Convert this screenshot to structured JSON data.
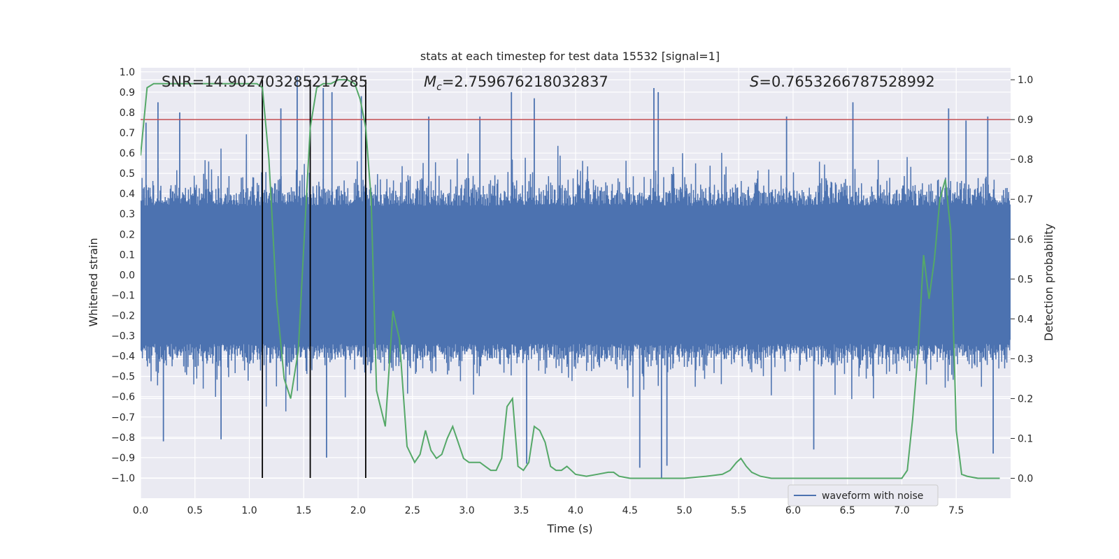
{
  "chart_data": {
    "type": "line",
    "title": "stats at each timestep for test data 15532 [signal=1]",
    "xlabel": "Time (s)",
    "ylabel": "Whitened strain",
    "y2label": "Detection probability",
    "xlim": [
      0.0,
      8.0
    ],
    "ylim": [
      -1.1,
      1.02
    ],
    "y2lim": [
      -0.05,
      1.03
    ],
    "xticks": [
      0.0,
      0.5,
      1.0,
      1.5,
      2.0,
      2.5,
      3.0,
      3.5,
      4.0,
      4.5,
      5.0,
      5.5,
      6.0,
      6.5,
      7.0,
      7.5
    ],
    "xtick_labels": [
      "0.0",
      "0.5",
      "1.0",
      "1.5",
      "2.0",
      "2.5",
      "3.0",
      "3.5",
      "4.0",
      "4.5",
      "5.0",
      "5.5",
      "6.0",
      "6.5",
      "7.0",
      "7.5"
    ],
    "yticks": [
      1.0,
      0.9,
      0.8,
      0.7,
      0.6,
      0.5,
      0.4,
      0.3,
      0.2,
      0.1,
      0.0,
      -0.1,
      -0.2,
      -0.3,
      -0.4,
      -0.5,
      -0.6,
      -0.7,
      -0.8,
      -0.9,
      -1.0
    ],
    "ytick_labels": [
      "1.0",
      "0.9",
      "0.8",
      "0.7",
      "0.6",
      "0.5",
      "0.4",
      "0.3",
      "0.2",
      "0.1",
      "0.0",
      "−0.1",
      "−0.2",
      "−0.3",
      "−0.4",
      "−0.5",
      "−0.6",
      "−0.7",
      "−0.8",
      "−0.9",
      "−1.0"
    ],
    "y2ticks": [
      1.0,
      0.9,
      0.8,
      0.7,
      0.6,
      0.5,
      0.4,
      0.3,
      0.2,
      0.1,
      0.0
    ],
    "y2tick_labels": [
      "1.0",
      "0.9",
      "0.8",
      "0.7",
      "0.6",
      "0.5",
      "0.4",
      "0.3",
      "0.2",
      "0.1",
      "0.0"
    ],
    "annotations": {
      "snr": "SNR=14.902703285217285",
      "mc_symbol": "M",
      "mc_sub": "c",
      "mc_value": "=2.759676218032837",
      "s_symbol": "S",
      "s_value": "=0.7653266787528992"
    },
    "threshold": 0.9,
    "vlines": [
      1.12,
      1.56,
      2.07
    ],
    "waveform": {
      "name": "waveform with noise",
      "typical_amplitude": 0.4,
      "peak_spikes": [
        {
          "t": 0.05,
          "v": 0.75
        },
        {
          "t": 0.16,
          "v": 0.85
        },
        {
          "t": 0.21,
          "v": -0.82
        },
        {
          "t": 0.36,
          "v": 0.8
        },
        {
          "t": 0.74,
          "v": -0.81
        },
        {
          "t": 1.29,
          "v": 0.82
        },
        {
          "t": 1.44,
          "v": 0.98
        },
        {
          "t": 1.68,
          "v": 0.92
        },
        {
          "t": 1.71,
          "v": -0.9
        },
        {
          "t": 1.76,
          "v": 0.9
        },
        {
          "t": 2.03,
          "v": 0.88
        },
        {
          "t": 2.65,
          "v": 0.78
        },
        {
          "t": 3.12,
          "v": 0.78
        },
        {
          "t": 3.41,
          "v": 0.9
        },
        {
          "t": 3.55,
          "v": -0.93
        },
        {
          "t": 3.62,
          "v": 0.87
        },
        {
          "t": 4.59,
          "v": -0.95
        },
        {
          "t": 4.72,
          "v": 0.92
        },
        {
          "t": 4.76,
          "v": 0.9
        },
        {
          "t": 4.79,
          "v": -1.0
        },
        {
          "t": 4.84,
          "v": -0.94
        },
        {
          "t": 5.94,
          "v": 0.78
        },
        {
          "t": 6.19,
          "v": -0.86
        },
        {
          "t": 6.55,
          "v": 0.85
        },
        {
          "t": 7.43,
          "v": 0.82
        },
        {
          "t": 7.59,
          "v": 0.76
        },
        {
          "t": 7.79,
          "v": 0.78
        },
        {
          "t": 7.84,
          "v": -0.88
        }
      ]
    },
    "probability": {
      "x": [
        0.0,
        0.06,
        0.12,
        0.25,
        0.5,
        0.75,
        0.95,
        1.07,
        1.12,
        1.18,
        1.25,
        1.32,
        1.38,
        1.45,
        1.5,
        1.56,
        1.62,
        1.68,
        1.75,
        1.82,
        1.9,
        1.97,
        2.02,
        2.07,
        2.12,
        2.17,
        2.25,
        2.32,
        2.38,
        2.45,
        2.52,
        2.57,
        2.62,
        2.67,
        2.72,
        2.77,
        2.82,
        2.87,
        2.92,
        2.97,
        3.02,
        3.07,
        3.12,
        3.17,
        3.22,
        3.27,
        3.32,
        3.37,
        3.42,
        3.47,
        3.52,
        3.57,
        3.62,
        3.67,
        3.72,
        3.77,
        3.82,
        3.87,
        3.92,
        4.0,
        4.1,
        4.2,
        4.3,
        4.35,
        4.4,
        4.5,
        4.6,
        4.8,
        5.0,
        5.2,
        5.35,
        5.42,
        5.48,
        5.52,
        5.57,
        5.62,
        5.7,
        5.8,
        6.0,
        6.2,
        6.4,
        6.6,
        6.8,
        7.0,
        7.05,
        7.1,
        7.15,
        7.2,
        7.25,
        7.3,
        7.35,
        7.4,
        7.45,
        7.5,
        7.55,
        7.6,
        7.7,
        7.8,
        7.9
      ],
      "y": [
        0.81,
        0.98,
        0.99,
        0.99,
        0.99,
        0.99,
        0.99,
        0.99,
        0.98,
        0.8,
        0.45,
        0.25,
        0.2,
        0.32,
        0.58,
        0.88,
        0.98,
        0.99,
        0.99,
        1.0,
        1.0,
        0.99,
        0.95,
        0.88,
        0.7,
        0.22,
        0.13,
        0.42,
        0.35,
        0.08,
        0.04,
        0.06,
        0.12,
        0.07,
        0.05,
        0.06,
        0.1,
        0.13,
        0.09,
        0.05,
        0.04,
        0.04,
        0.04,
        0.03,
        0.02,
        0.02,
        0.05,
        0.18,
        0.2,
        0.03,
        0.02,
        0.04,
        0.13,
        0.12,
        0.09,
        0.03,
        0.02,
        0.02,
        0.03,
        0.01,
        0.005,
        0.01,
        0.015,
        0.015,
        0.005,
        0.0,
        0.0,
        0.0,
        0.0,
        0.005,
        0.01,
        0.02,
        0.04,
        0.05,
        0.03,
        0.015,
        0.005,
        0.0,
        0.0,
        0.0,
        0.0,
        0.0,
        0.0,
        0.0,
        0.02,
        0.15,
        0.32,
        0.56,
        0.45,
        0.55,
        0.7,
        0.75,
        0.62,
        0.12,
        0.01,
        0.005,
        0.0,
        0.0,
        0.0
      ]
    },
    "colors": {
      "background": "#eaeaf2",
      "grid": "#ffffff",
      "waveform": "#4c72b0",
      "probability": "#55a868",
      "threshold": "#c44e52",
      "vline": "#000000"
    },
    "legend_location": "lower-right"
  }
}
